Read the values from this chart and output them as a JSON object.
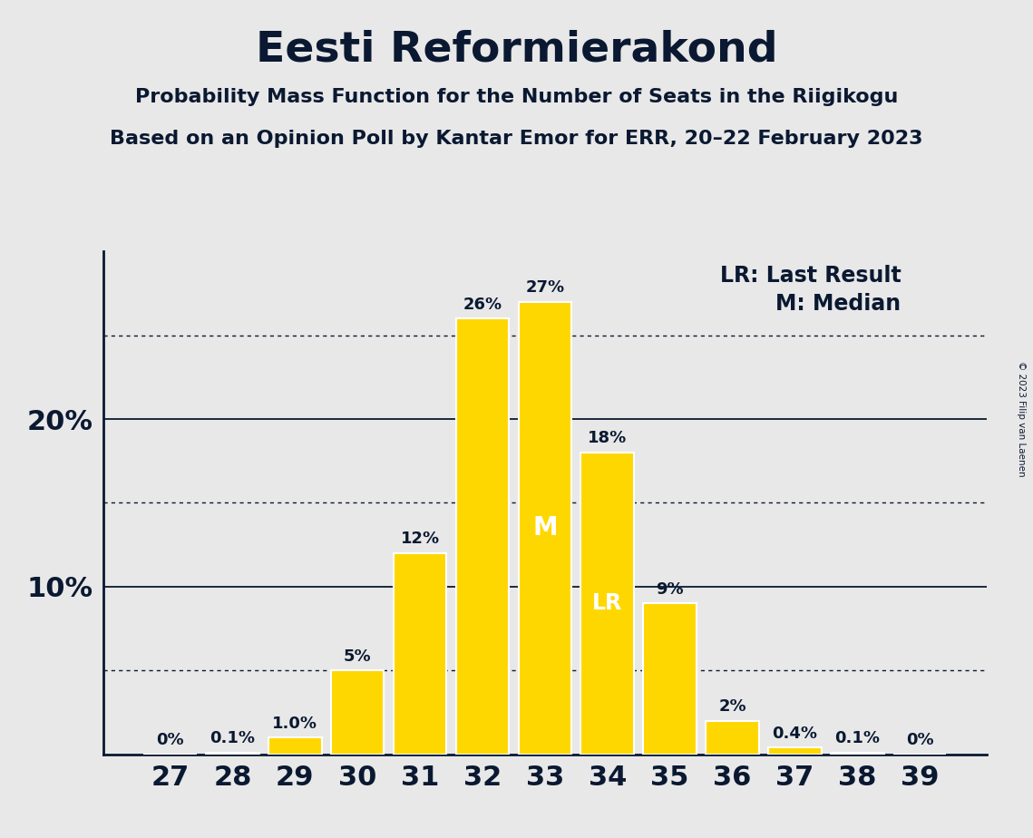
{
  "title": "Eesti Reformierakond",
  "subtitle1": "Probability Mass Function for the Number of Seats in the Riigikogu",
  "subtitle2": "Based on an Opinion Poll by Kantar Emor for ERR, 20–22 February 2023",
  "copyright": "© 2023 Filip van Laenen",
  "seats": [
    27,
    28,
    29,
    30,
    31,
    32,
    33,
    34,
    35,
    36,
    37,
    38,
    39
  ],
  "probabilities": [
    0.0,
    0.1,
    1.0,
    5.0,
    12.0,
    26.0,
    27.0,
    18.0,
    9.0,
    2.0,
    0.4,
    0.1,
    0.0
  ],
  "labels": [
    "0%",
    "0.1%",
    "1.0%",
    "5%",
    "12%",
    "26%",
    "27%",
    "18%",
    "9%",
    "2%",
    "0.4%",
    "0.1%",
    "0%"
  ],
  "bar_color": "#FFD700",
  "bar_edge_color": "#FFFFFF",
  "background_color": "#E8E8E8",
  "text_color": "#0A1931",
  "median_seat": 33,
  "lr_seat": 34,
  "legend_lr": "LR: Last Result",
  "legend_m": "M: Median",
  "yticks": [
    10,
    20
  ],
  "ytick_labels": [
    "10%",
    "20%"
  ],
  "dotted_lines": [
    5,
    15,
    25
  ],
  "solid_lines": [
    10,
    20
  ],
  "ylim": [
    0,
    30
  ]
}
